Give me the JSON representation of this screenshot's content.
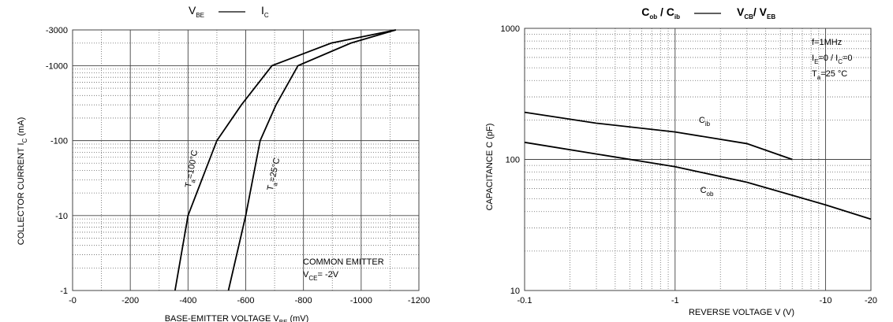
{
  "chart_data": [
    {
      "type": "line",
      "title": [
        [
          {
            "text": "V"
          },
          {
            "text": "BE",
            "sub": true
          }
        ],
        [
          {
            "text": "I"
          },
          {
            "text": "C",
            "sub": true
          }
        ]
      ],
      "xlabel": [
        {
          "text": "BASE-EMITTER VOLTAGE   V"
        },
        {
          "text": "BE",
          "sub": true
        },
        {
          "text": "  (mV)"
        }
      ],
      "ylabel": [
        {
          "text": "COLLECTOR CURRENT     I"
        },
        {
          "text": "C",
          "sub": true
        },
        {
          "text": " (mA)"
        }
      ],
      "xlim": [
        0,
        -1200
      ],
      "xticks": [
        {
          "value": 0,
          "label": "-0"
        },
        -200,
        -400,
        -600,
        -800,
        -1000,
        -1200
      ],
      "ylim": [
        -1,
        -3000
      ],
      "yticks": [
        -1,
        -10,
        -100,
        -1000,
        -3000
      ],
      "ylog": true,
      "grid": true,
      "minor_grid": true,
      "series": [
        {
          "name": [
            {
              "text": "T"
            },
            {
              "text": "a",
              "sub": true
            },
            {
              "text": "=100°C"
            }
          ],
          "color": "#000000",
          "x": [
            -355,
            -400,
            -500,
            -585,
            -691,
            -896,
            -1120
          ],
          "values": [
            -1,
            -10,
            -100,
            -300,
            -1000,
            -2000,
            -3000
          ]
        },
        {
          "name": [
            {
              "text": "T"
            },
            {
              "text": "a",
              "sub": true
            },
            {
              "text": "=25°C"
            }
          ],
          "color": "#000000",
          "x": [
            -540,
            -600,
            -650,
            -705,
            -781,
            -964,
            -1120
          ],
          "values": [
            -1,
            -10,
            -100,
            -300,
            -1000,
            -2000,
            -3000
          ]
        }
      ],
      "annotations": [
        [
          {
            "text": "COMMON EMITTER"
          }
        ],
        [
          {
            "text": "V"
          },
          {
            "text": "CE",
            "sub": true
          },
          {
            "text": "= -2V"
          }
        ]
      ]
    },
    {
      "type": "line",
      "title": [
        [
          {
            "text": "C"
          },
          {
            "text": "ob",
            "sub": true
          },
          {
            "text": " /  C"
          },
          {
            "text": "ib",
            "sub": true
          }
        ],
        [
          {
            "text": "V"
          },
          {
            "text": "CB",
            "sub": true
          },
          {
            "text": "/ V"
          },
          {
            "text": "EB",
            "sub": true
          }
        ]
      ],
      "xlabel": [
        {
          "text": "REVERSE VOLTAGE V (V)"
        }
      ],
      "ylabel": [
        {
          "text": "CAPACITANCE C (pF)"
        }
      ],
      "xlim": [
        -0.1,
        -20
      ],
      "xticks": [
        -0.1,
        -1,
        -10,
        -20
      ],
      "ylim": [
        10,
        1000
      ],
      "yticks": [
        10,
        100,
        1000
      ],
      "xlog": true,
      "ylog": true,
      "grid": true,
      "minor_grid": true,
      "series": [
        {
          "name": [
            {
              "text": "C"
            },
            {
              "text": "ib",
              "sub": true
            }
          ],
          "color": "#000000",
          "x": [
            -0.1,
            -0.3,
            -1,
            -3,
            -6
          ],
          "values": [
            229,
            189,
            162,
            132,
            100
          ]
        },
        {
          "name": [
            {
              "text": "C"
            },
            {
              "text": "ob",
              "sub": true
            }
          ],
          "color": "#000000",
          "x": [
            -0.1,
            -0.3,
            -1,
            -3,
            -10,
            -20
          ],
          "values": [
            135,
            110,
            88,
            67,
            45,
            35
          ]
        }
      ],
      "annotations": [
        [
          {
            "text": "f=1MHz"
          }
        ],
        [
          {
            "text": "I"
          },
          {
            "text": "E",
            "sub": true
          },
          {
            "text": "=0 / I"
          },
          {
            "text": "C",
            "sub": true
          },
          {
            "text": "=0"
          }
        ],
        [
          {
            "text": "T"
          },
          {
            "text": "a",
            "sub": true
          },
          {
            "text": "=25 °C"
          }
        ]
      ]
    }
  ]
}
